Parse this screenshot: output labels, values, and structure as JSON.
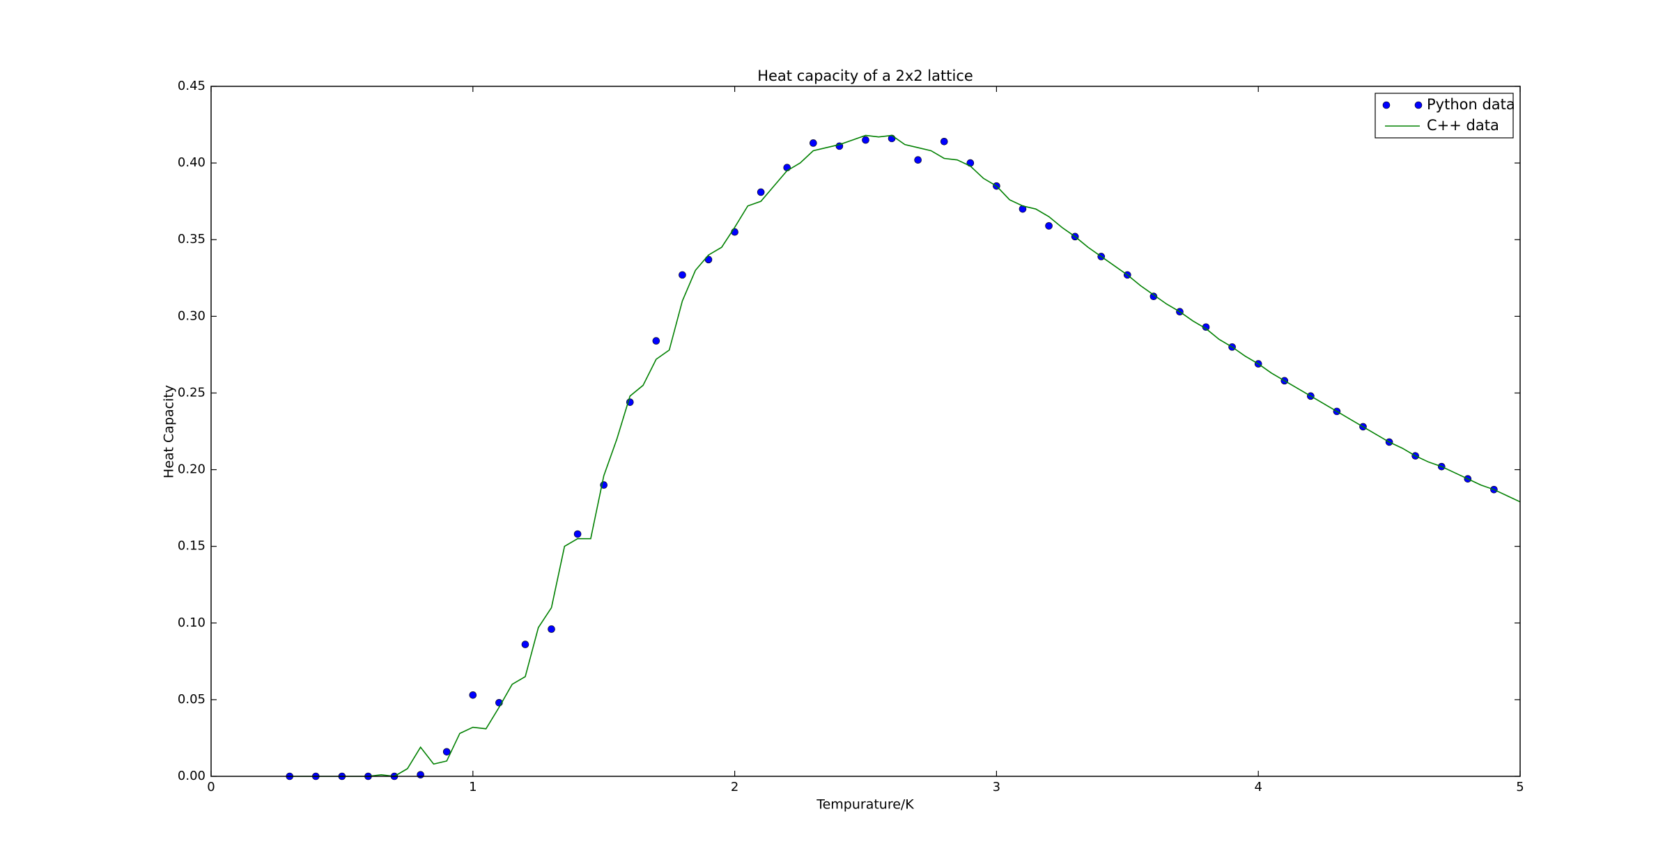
{
  "chart_data": {
    "type": "line",
    "title": "Heat capacity of a 2x2 lattice",
    "xlabel": "Tempurature/K",
    "ylabel": "Heat Capacity",
    "xlim": [
      0,
      5
    ],
    "ylim": [
      0,
      0.45
    ],
    "xticks": [
      0,
      1,
      2,
      3,
      4,
      5
    ],
    "yticks": [
      {
        "value": 0,
        "label": "0.00"
      },
      0.05,
      {
        "value": 0.1,
        "label": "0.10"
      },
      0.15,
      {
        "value": 0.2,
        "label": "0.20"
      },
      0.25,
      {
        "value": 0.3,
        "label": "0.30"
      },
      0.35,
      {
        "value": 0.4,
        "label": "0.40"
      },
      0.45
    ],
    "legend": "upper right",
    "series": [
      {
        "name": "Python data",
        "color": "#0000ff",
        "kind": "marker",
        "x": [
          0.3,
          0.4,
          0.5,
          0.6,
          0.7,
          0.8,
          0.9,
          1.0,
          1.1,
          1.2,
          1.3,
          1.4,
          1.5,
          1.6,
          1.7,
          1.8,
          1.9,
          2.0,
          2.1,
          2.2,
          2.3,
          2.4,
          2.5,
          2.6,
          2.7,
          2.8,
          2.9,
          3.0,
          3.1,
          3.2,
          3.3,
          3.4,
          3.5,
          3.6,
          3.7,
          3.8,
          3.9,
          4.0,
          4.1,
          4.2,
          4.3,
          4.4,
          4.5,
          4.6,
          4.7,
          4.8,
          4.9
        ],
        "values": [
          0,
          0,
          0,
          0,
          0,
          0.001,
          0.016,
          0.053,
          0.048,
          0.086,
          0.096,
          0.158,
          0.19,
          0.244,
          0.284,
          0.327,
          0.337,
          0.355,
          0.381,
          0.397,
          0.413,
          0.411,
          0.415,
          0.416,
          0.402,
          0.414,
          0.4,
          0.385,
          0.37,
          0.359,
          0.352,
          0.339,
          0.327,
          0.313,
          0.303,
          0.293,
          0.28,
          0.269,
          0.258,
          0.248,
          0.238,
          0.228,
          0.218,
          0.209,
          0.202,
          0.194,
          0.187
        ]
      },
      {
        "name": "C++ data",
        "color": "#008000",
        "kind": "line",
        "x": [
          0.3,
          0.35,
          0.4,
          0.45,
          0.5,
          0.55,
          0.6,
          0.65,
          0.7,
          0.75,
          0.8,
          0.85,
          0.9,
          0.95,
          1.0,
          1.05,
          1.1,
          1.15,
          1.2,
          1.25,
          1.3,
          1.35,
          1.4,
          1.45,
          1.5,
          1.55,
          1.6,
          1.65,
          1.7,
          1.75,
          1.8,
          1.85,
          1.9,
          1.95,
          2.0,
          2.05,
          2.1,
          2.15,
          2.2,
          2.25,
          2.3,
          2.35,
          2.4,
          2.45,
          2.5,
          2.55,
          2.6,
          2.65,
          2.7,
          2.75,
          2.8,
          2.85,
          2.9,
          2.95,
          3.0,
          3.05,
          3.1,
          3.15,
          3.2,
          3.25,
          3.3,
          3.35,
          3.4,
          3.45,
          3.5,
          3.55,
          3.6,
          3.65,
          3.7,
          3.75,
          3.8,
          3.85,
          3.9,
          3.95,
          4.0,
          4.05,
          4.1,
          4.15,
          4.2,
          4.25,
          4.3,
          4.35,
          4.4,
          4.45,
          4.5,
          4.55,
          4.6,
          4.65,
          4.7,
          4.75,
          4.8,
          4.85,
          4.9,
          4.95,
          5.0
        ],
        "values": [
          0,
          0,
          0,
          0,
          0,
          0,
          0,
          0.001,
          0,
          0.005,
          0.019,
          0.008,
          0.01,
          0.028,
          0.032,
          0.031,
          0.045,
          0.06,
          0.065,
          0.097,
          0.11,
          0.15,
          0.155,
          0.155,
          0.196,
          0.22,
          0.248,
          0.255,
          0.272,
          0.278,
          0.31,
          0.33,
          0.34,
          0.345,
          0.358,
          0.372,
          0.375,
          0.385,
          0.395,
          0.4,
          0.408,
          0.41,
          0.412,
          0.415,
          0.418,
          0.417,
          0.418,
          0.412,
          0.41,
          0.408,
          0.403,
          0.402,
          0.398,
          0.39,
          0.385,
          0.376,
          0.372,
          0.37,
          0.365,
          0.358,
          0.352,
          0.345,
          0.339,
          0.333,
          0.327,
          0.32,
          0.314,
          0.308,
          0.303,
          0.297,
          0.292,
          0.285,
          0.28,
          0.274,
          0.269,
          0.263,
          0.258,
          0.253,
          0.248,
          0.243,
          0.238,
          0.233,
          0.228,
          0.223,
          0.218,
          0.214,
          0.209,
          0.205,
          0.202,
          0.198,
          0.194,
          0.19,
          0.187,
          0.183,
          0.179
        ]
      }
    ]
  }
}
